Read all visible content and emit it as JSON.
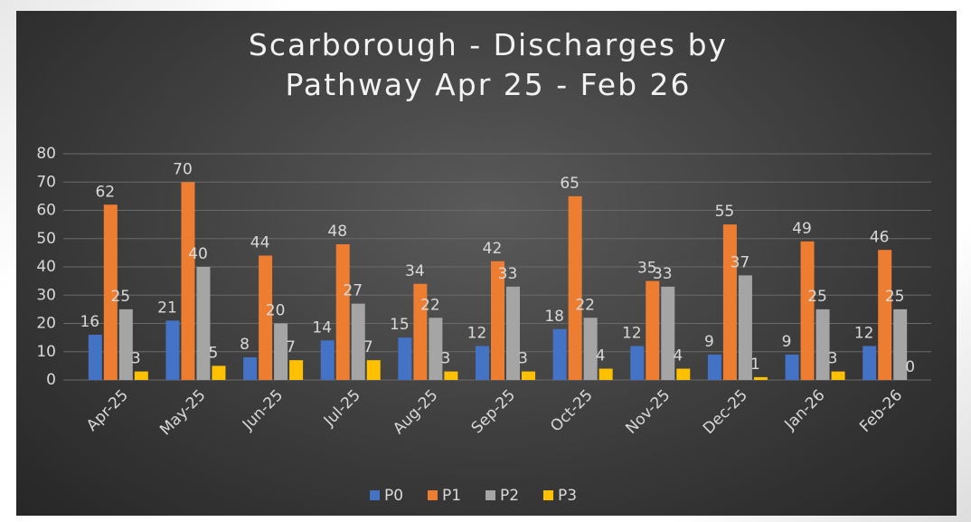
{
  "chart_data": {
    "type": "bar",
    "title": "Scarborough - Discharges by Pathway Apr 25 - Feb 26",
    "categories": [
      "Apr-25",
      "May-25",
      "Jun-25",
      "Jul-25",
      "Aug-25",
      "Sep-25",
      "Oct-25",
      "Nov-25",
      "Dec-25",
      "Jan-26",
      "Feb-26"
    ],
    "series": [
      {
        "name": "P0",
        "color": "#4472c4",
        "values": [
          16,
          21,
          8,
          14,
          15,
          12,
          18,
          12,
          9,
          9,
          12
        ]
      },
      {
        "name": "P1",
        "color": "#ed7d31",
        "values": [
          62,
          70,
          44,
          48,
          34,
          42,
          65,
          35,
          55,
          49,
          46
        ]
      },
      {
        "name": "P2",
        "color": "#a5a5a5",
        "values": [
          25,
          40,
          20,
          27,
          22,
          33,
          22,
          33,
          37,
          25,
          25
        ]
      },
      {
        "name": "P3",
        "color": "#ffc000",
        "values": [
          3,
          5,
          7,
          7,
          3,
          3,
          4,
          4,
          1,
          3,
          0
        ]
      }
    ],
    "ylim": [
      0,
      80
    ],
    "yticks": [
      0,
      10,
      20,
      30,
      40,
      50,
      60,
      70,
      80
    ],
    "grid": true,
    "legend": "bottom"
  }
}
